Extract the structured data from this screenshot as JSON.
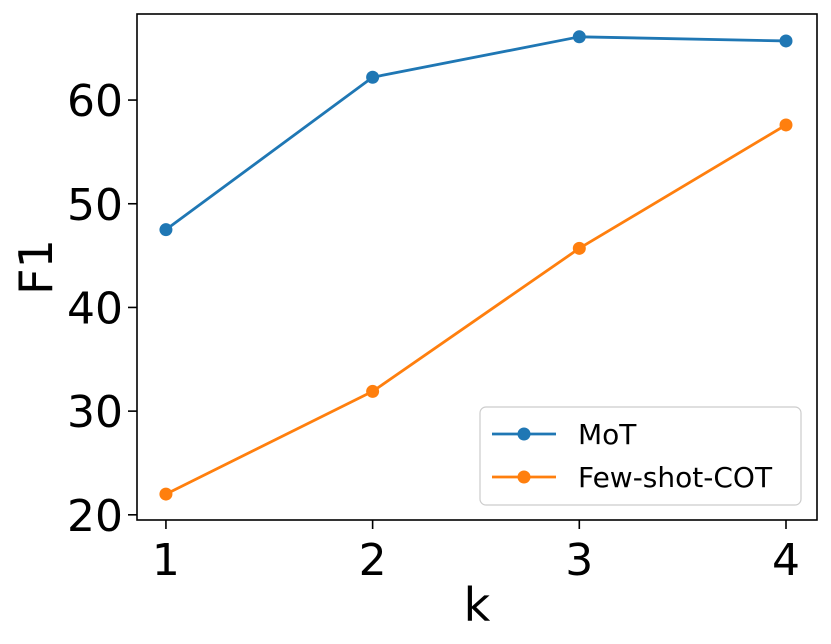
{
  "chart_data": {
    "type": "line",
    "title": "",
    "xlabel": "k",
    "ylabel": "F1",
    "x": [
      1,
      2,
      3,
      4
    ],
    "xlim": [
      0.86,
      4.15
    ],
    "ylim": [
      19.5,
      68.3
    ],
    "xticks": [
      1,
      2,
      3,
      4
    ],
    "xtick_labels": [
      "1",
      "2",
      "3",
      "4"
    ],
    "yticks": [
      20,
      30,
      40,
      50,
      60
    ],
    "ytick_labels": [
      "20",
      "30",
      "40",
      "50",
      "60"
    ],
    "grid": false,
    "legend_position": "lower-right",
    "series": [
      {
        "name": "MoT",
        "color": "#1f77b4",
        "values": [
          47.5,
          62.2,
          66.1,
          65.7
        ]
      },
      {
        "name": "Few-shot-COT",
        "color": "#ff7f0e",
        "values": [
          22.0,
          31.9,
          45.7,
          57.6
        ]
      }
    ]
  }
}
